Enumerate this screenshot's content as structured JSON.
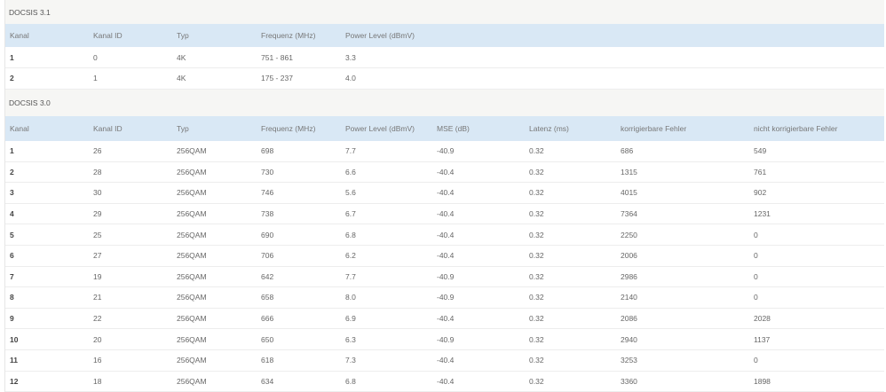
{
  "docsis31": {
    "title": "DOCSIS 3.1",
    "headers": [
      "Kanal",
      "Kanal ID",
      "Typ",
      "Frequenz (MHz)",
      "Power Level (dBmV)"
    ],
    "rows": [
      [
        "1",
        "0",
        "4K",
        "751 - 861",
        "3.3"
      ],
      [
        "2",
        "1",
        "4K",
        "175 - 237",
        "4.0"
      ]
    ]
  },
  "docsis30": {
    "title": "DOCSIS 3.0",
    "headers": [
      "Kanal",
      "Kanal ID",
      "Typ",
      "Frequenz (MHz)",
      "Power Level (dBmV)",
      "MSE (dB)",
      "Latenz (ms)",
      "korrigierbare Fehler",
      "nicht korrigierbare Fehler"
    ],
    "rows": [
      [
        "1",
        "26",
        "256QAM",
        "698",
        "7.7",
        "-40.9",
        "0.32",
        "686",
        "549"
      ],
      [
        "2",
        "28",
        "256QAM",
        "730",
        "6.6",
        "-40.4",
        "0.32",
        "1315",
        "761"
      ],
      [
        "3",
        "30",
        "256QAM",
        "746",
        "5.6",
        "-40.4",
        "0.32",
        "4015",
        "902"
      ],
      [
        "4",
        "29",
        "256QAM",
        "738",
        "6.7",
        "-40.4",
        "0.32",
        "7364",
        "1231"
      ],
      [
        "5",
        "25",
        "256QAM",
        "690",
        "6.8",
        "-40.4",
        "0.32",
        "2250",
        "0"
      ],
      [
        "6",
        "27",
        "256QAM",
        "706",
        "6.2",
        "-40.4",
        "0.32",
        "2006",
        "0"
      ],
      [
        "7",
        "19",
        "256QAM",
        "642",
        "7.7",
        "-40.9",
        "0.32",
        "2986",
        "0"
      ],
      [
        "8",
        "21",
        "256QAM",
        "658",
        "8.0",
        "-40.9",
        "0.32",
        "2140",
        "0"
      ],
      [
        "9",
        "22",
        "256QAM",
        "666",
        "6.9",
        "-40.4",
        "0.32",
        "2086",
        "2028"
      ],
      [
        "10",
        "20",
        "256QAM",
        "650",
        "6.3",
        "-40.9",
        "0.32",
        "2940",
        "1137"
      ],
      [
        "11",
        "16",
        "256QAM",
        "618",
        "7.3",
        "-40.4",
        "0.32",
        "3253",
        "0"
      ],
      [
        "12",
        "18",
        "256QAM",
        "634",
        "6.8",
        "-40.4",
        "0.32",
        "3360",
        "1898"
      ]
    ]
  }
}
